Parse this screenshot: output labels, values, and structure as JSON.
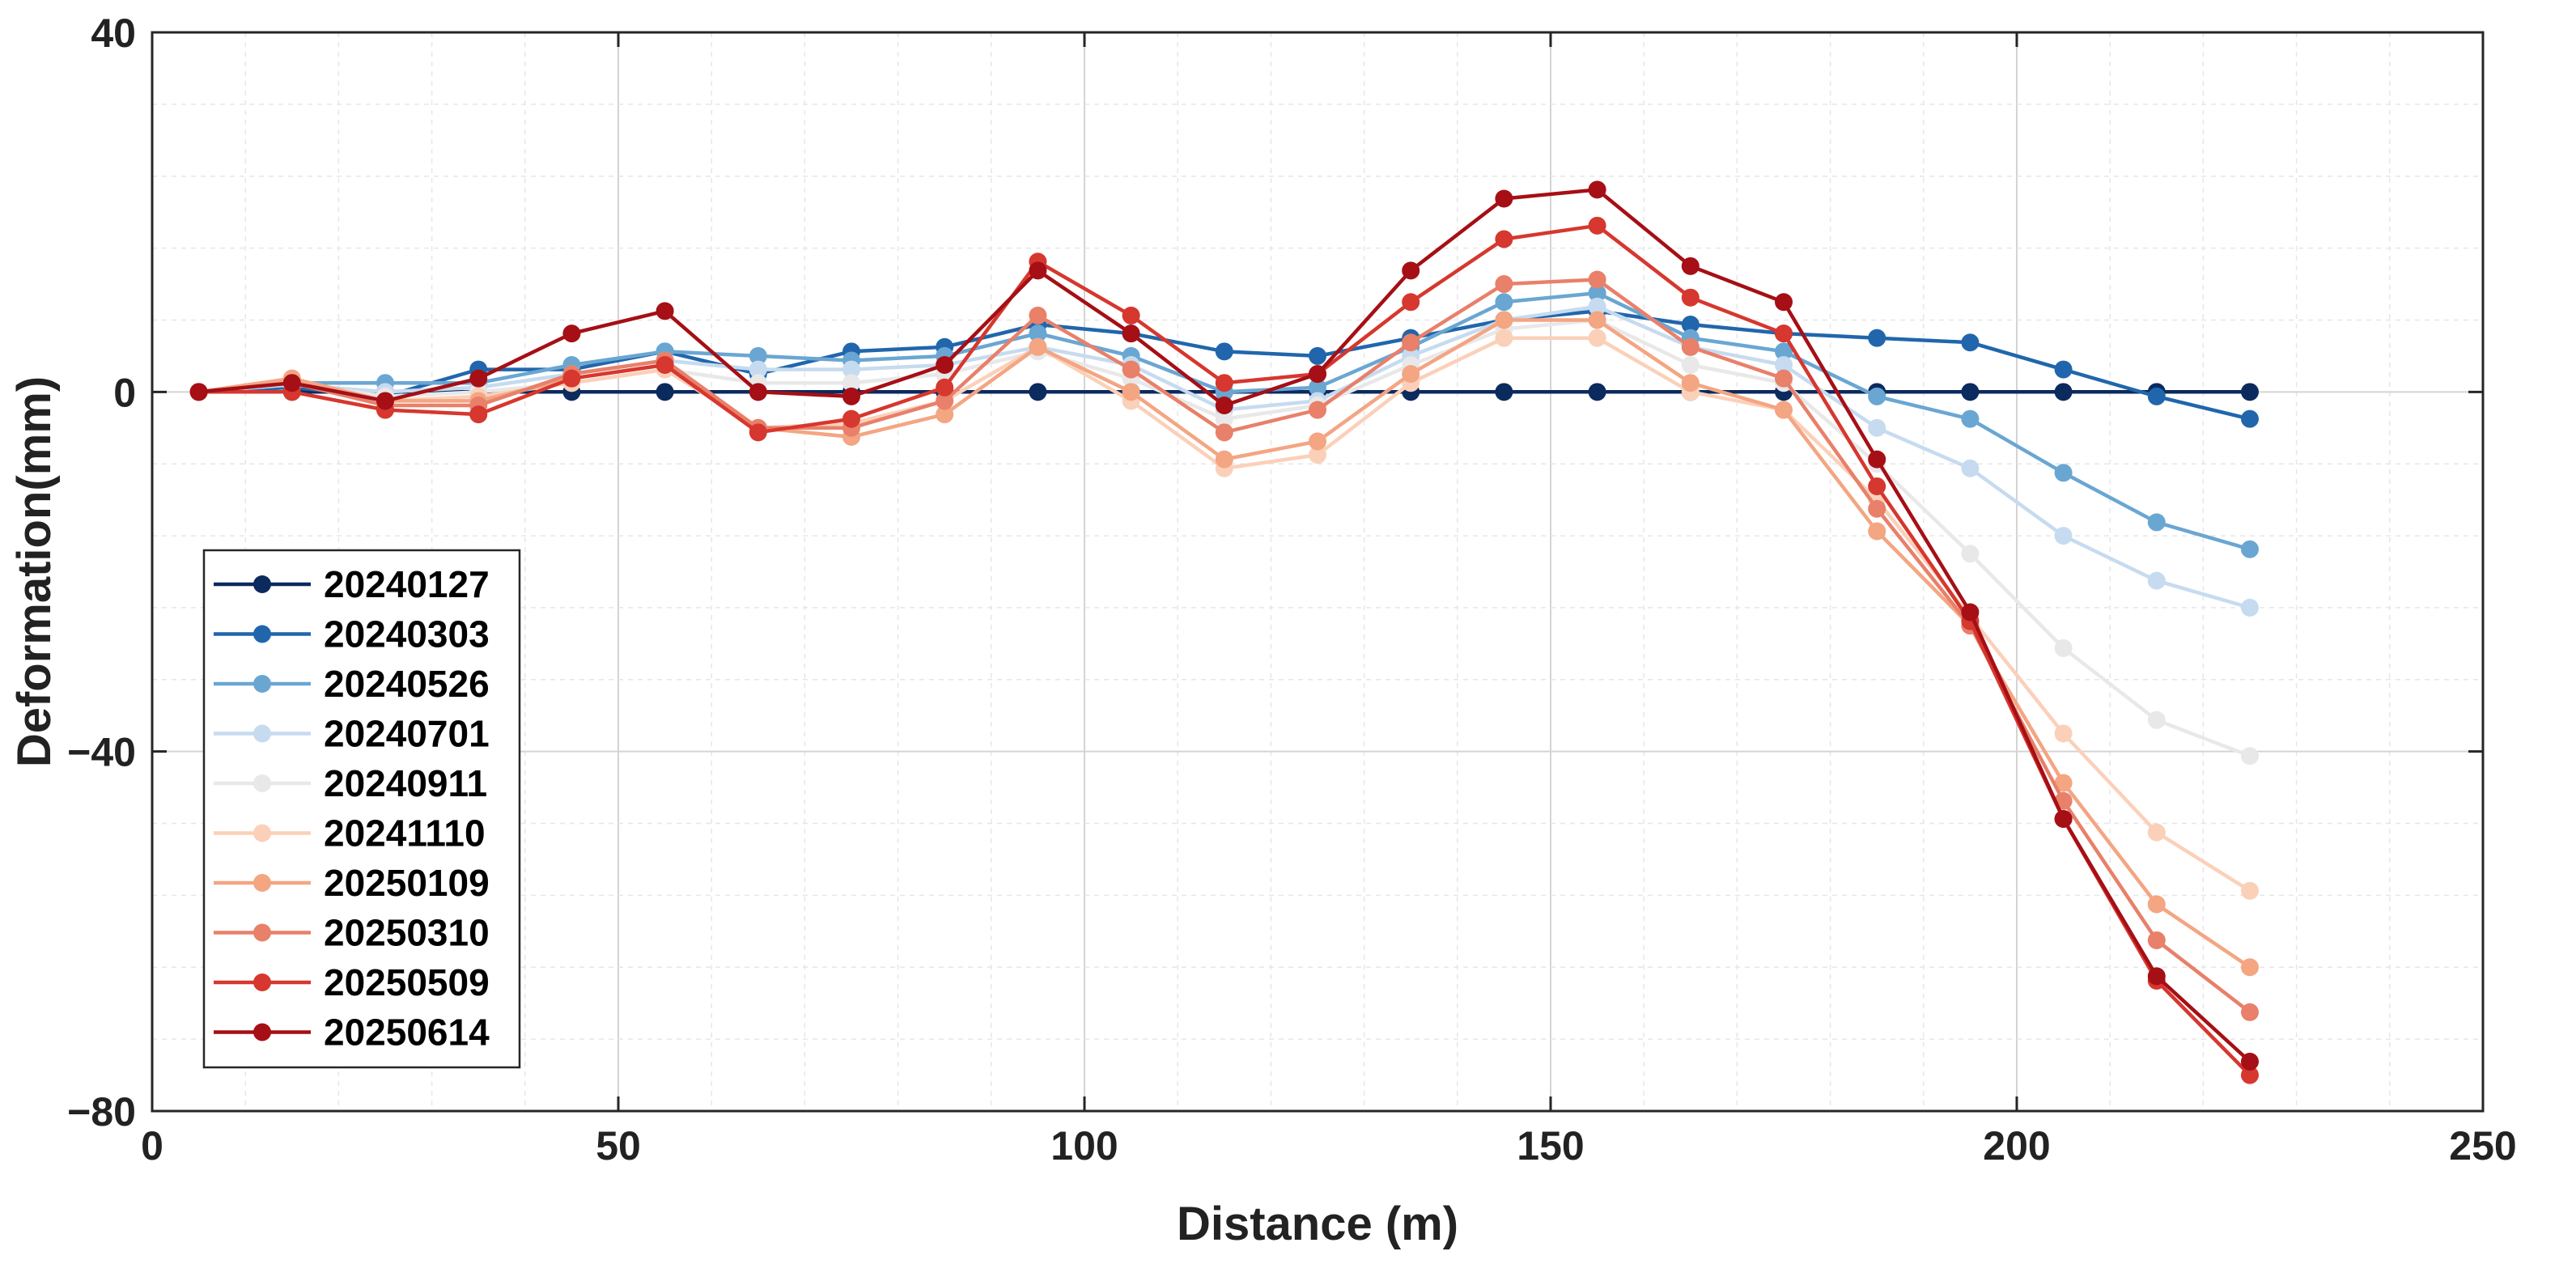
{
  "chart_data": {
    "type": "line",
    "title": "",
    "xlabel": "Distance (m)",
    "ylabel": "Deformation(mm)",
    "xlim": [
      0,
      250
    ],
    "ylim": [
      -80,
      40
    ],
    "xticks": [
      0,
      50,
      100,
      150,
      200,
      250
    ],
    "yticks": [
      -80,
      -40,
      0,
      40
    ],
    "x_tick_labels": [
      "0",
      "50",
      "100",
      "150",
      "200",
      "250"
    ],
    "y_tick_labels": [
      "−80",
      "−40",
      "0",
      "40"
    ],
    "grid": true,
    "legend_position": "lower-left",
    "x": [
      5,
      15,
      25,
      35,
      45,
      55,
      65,
      75,
      85,
      95,
      105,
      115,
      125,
      135,
      145,
      155,
      165,
      175,
      185,
      195,
      205,
      215,
      225
    ],
    "series": [
      {
        "name": "20240127",
        "color": "#0b2a5e",
        "values": [
          0,
          0,
          0,
          0,
          0,
          0,
          0,
          0,
          0,
          0,
          0,
          0,
          0,
          0,
          0,
          0,
          0,
          0,
          0,
          0,
          0,
          0,
          0
        ]
      },
      {
        "name": "20240303",
        "color": "#2166ac",
        "values": [
          0,
          0.5,
          -0.5,
          2.5,
          2.5,
          4.5,
          2,
          4.5,
          5,
          7.5,
          6.5,
          4.5,
          4,
          6,
          8,
          9,
          7.5,
          6.5,
          6,
          5.5,
          2.5,
          -0.5,
          -3
        ]
      },
      {
        "name": "20240526",
        "color": "#6aa6d2",
        "values": [
          0,
          1,
          1,
          1,
          3,
          4.5,
          4,
          3.5,
          4,
          6.5,
          4,
          0,
          0.5,
          5,
          10,
          11,
          6,
          4.5,
          -0.5,
          -3,
          -9,
          -14.5,
          -17.5
        ]
      },
      {
        "name": "20240701",
        "color": "#c6dbef",
        "values": [
          0,
          0.8,
          0,
          0.5,
          2,
          3.5,
          2.5,
          2.5,
          3,
          5,
          3,
          -2,
          -1,
          4,
          8,
          9.5,
          5,
          3,
          -4,
          -8.5,
          -16,
          -21,
          -24
        ]
      },
      {
        "name": "20240911",
        "color": "#e8e8e8",
        "values": [
          0,
          1,
          -0.5,
          0,
          1,
          2.5,
          1,
          1,
          2,
          4.5,
          1.5,
          -3,
          -1.5,
          3,
          7,
          8,
          3,
          1,
          -8,
          -18,
          -28.5,
          -36.5,
          -40.5
        ]
      },
      {
        "name": "20241110",
        "color": "#fbd0b9",
        "values": [
          0,
          1.5,
          -1,
          -0.5,
          1,
          2.5,
          -4,
          -3.5,
          -1,
          5,
          -1,
          -8.5,
          -7,
          1,
          6,
          6,
          0,
          -2,
          -12,
          -25,
          -38,
          -49,
          -55.5
        ]
      },
      {
        "name": "20250109",
        "color": "#f4a582",
        "values": [
          0,
          1.5,
          -1,
          -1,
          1.5,
          3,
          -4,
          -5,
          -2.5,
          5,
          0,
          -7.5,
          -5.5,
          2,
          8,
          8,
          1,
          -2,
          -15.5,
          -26,
          -43.5,
          -57,
          -64
        ]
      },
      {
        "name": "20250310",
        "color": "#e8806a",
        "values": [
          0,
          1,
          -1.5,
          -1.5,
          2,
          3.5,
          -4,
          -4,
          -1,
          8.5,
          2.5,
          -4.5,
          -2,
          5.5,
          12,
          12.5,
          5,
          1.5,
          -13,
          -26,
          -45.5,
          -61,
          -69
        ]
      },
      {
        "name": "20250509",
        "color": "#d6372e",
        "values": [
          0,
          0,
          -2,
          -2.5,
          1.5,
          3,
          -4.5,
          -3,
          0.5,
          14.5,
          8.5,
          1,
          2,
          10,
          17,
          18.5,
          10.5,
          6.5,
          -10.5,
          -25.5,
          -47.5,
          -65.5,
          -76
        ]
      },
      {
        "name": "20250614",
        "color": "#a50f15",
        "values": [
          0,
          1,
          -1,
          1.5,
          6.5,
          9,
          0,
          -0.5,
          3,
          13.5,
          6.5,
          -1.5,
          2,
          13.5,
          21.5,
          22.5,
          14,
          10,
          -7.5,
          -24.5,
          -47.5,
          -65,
          -74.5
        ]
      }
    ]
  }
}
